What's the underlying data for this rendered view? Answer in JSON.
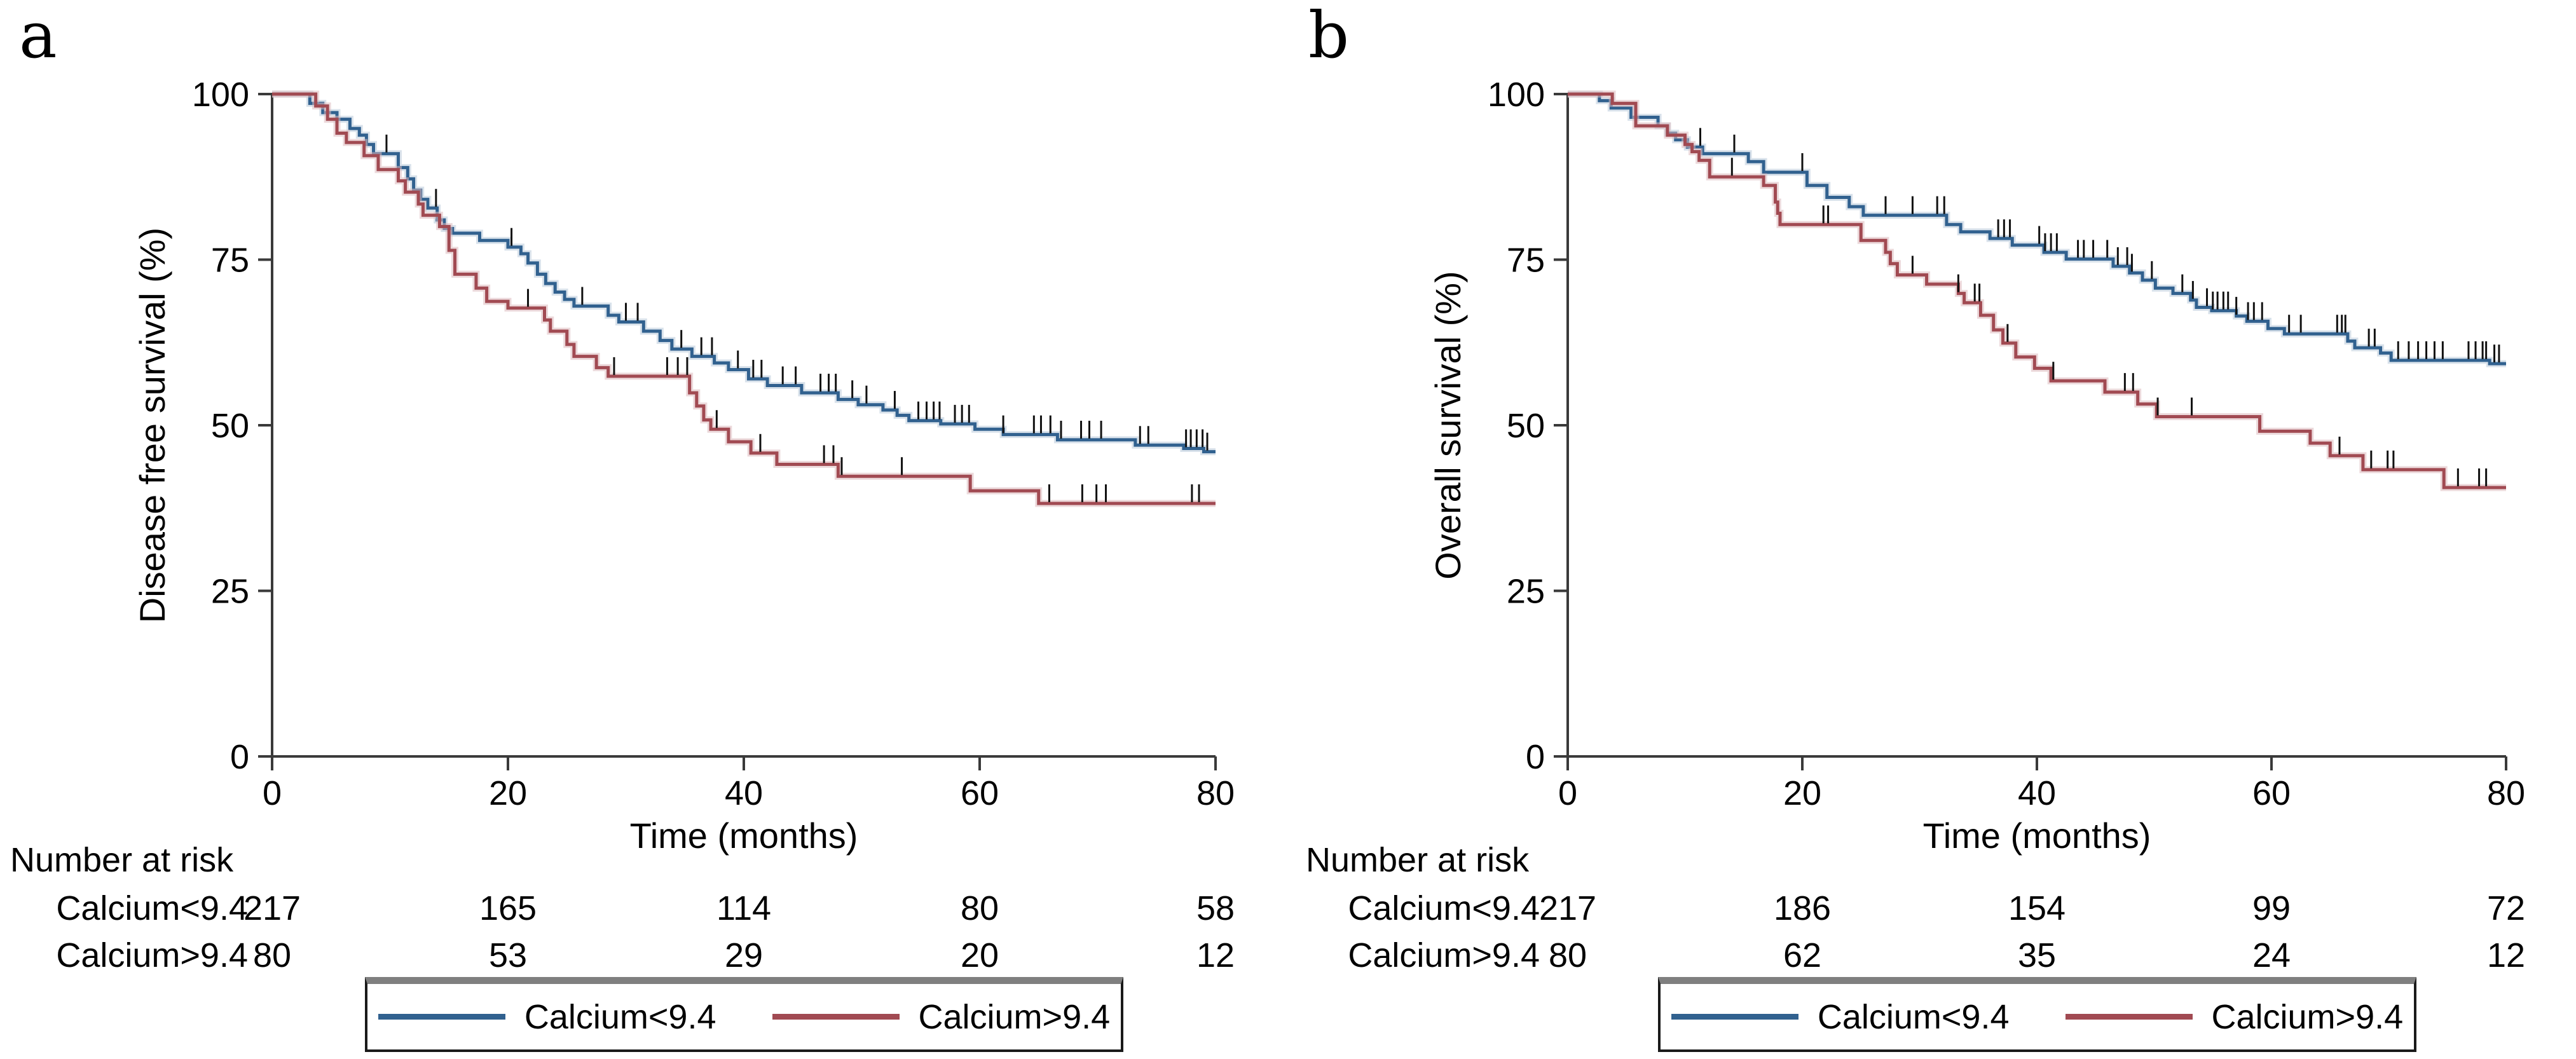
{
  "figure": {
    "panel_letters": [
      "a",
      "b"
    ],
    "accent_colors": {
      "group_low": "#31618f",
      "group_high": "#a14a52"
    },
    "axis_color": "#3a3a3a"
  },
  "chart_data": [
    {
      "panel_label": "a",
      "type": "line",
      "subtype": "kaplan-meier-step",
      "xlabel": "Time (months)",
      "ylabel": "Disease free survival (%)",
      "xlim": [
        0,
        80
      ],
      "ylim": [
        0,
        100
      ],
      "xticks": [
        0,
        20,
        40,
        60,
        80
      ],
      "yticks": [
        0,
        25,
        50,
        75,
        100
      ],
      "grid": false,
      "legend_position": "bottom-center-boxed",
      "series": [
        {
          "name": "Calcium<9.4",
          "color": "#31618f",
          "halo": "#b9cbdb",
          "steps": [
            [
              0,
              100
            ],
            [
              3.2,
              98.6
            ],
            [
              4.3,
              97.2
            ],
            [
              5.5,
              96.2
            ],
            [
              6.6,
              94.8
            ],
            [
              7.4,
              93.8
            ],
            [
              8.0,
              92.4
            ],
            [
              8.6,
              91.0
            ],
            [
              10.7,
              88.9
            ],
            [
              11.5,
              87.2
            ],
            [
              12.0,
              85.5
            ],
            [
              12.6,
              84.1
            ],
            [
              13.2,
              82.8
            ],
            [
              14.0,
              81.0
            ],
            [
              14.6,
              79.7
            ],
            [
              15.3,
              79.0
            ],
            [
              17.6,
              77.9
            ],
            [
              20.0,
              76.9
            ],
            [
              21.1,
              75.9
            ],
            [
              21.7,
              74.5
            ],
            [
              22.5,
              72.8
            ],
            [
              23.2,
              71.4
            ],
            [
              24.0,
              70.1
            ],
            [
              24.8,
              69.0
            ],
            [
              25.6,
              68.0
            ],
            [
              28.5,
              66.6
            ],
            [
              29.4,
              65.6
            ],
            [
              31.5,
              64.2
            ],
            [
              32.9,
              62.8
            ],
            [
              33.9,
              61.5
            ],
            [
              35.6,
              60.4
            ],
            [
              37.5,
              59.4
            ],
            [
              38.7,
              58.4
            ],
            [
              40.4,
              57.0
            ],
            [
              42.0,
              56.0
            ],
            [
              44.9,
              54.9
            ],
            [
              48.0,
              53.9
            ],
            [
              49.7,
              53.1
            ],
            [
              51.8,
              52.3
            ],
            [
              53.0,
              51.5
            ],
            [
              54.0,
              50.7
            ],
            [
              56.7,
              50.2
            ],
            [
              59.6,
              49.4
            ],
            [
              62.0,
              48.6
            ],
            [
              66.6,
              47.8
            ],
            [
              73.2,
              47.0
            ],
            [
              77.3,
              46.5
            ],
            [
              79.0,
              46.0
            ]
          ],
          "censor_times": [
            9.7,
            13.9,
            20.3,
            26.3,
            30.0,
            31.0,
            34.7,
            36.4,
            37.3,
            39.5,
            40.8,
            41.5,
            43.3,
            44.4,
            46.5,
            47.2,
            47.8,
            49.2,
            50.4,
            52.8,
            54.8,
            55.5,
            56.1,
            56.6,
            57.9,
            58.5,
            59.1,
            62.0,
            64.6,
            65.2,
            66.0,
            66.9,
            68.6,
            69.3,
            70.3,
            73.6,
            74.3,
            77.5,
            77.9,
            78.4,
            78.9,
            79.3
          ]
        },
        {
          "name": "Calcium>9.4",
          "color": "#a14a52",
          "halo": "#ddb9bd",
          "steps": [
            [
              0,
              100
            ],
            [
              3.7,
              98.2
            ],
            [
              4.7,
              96.2
            ],
            [
              5.5,
              94.1
            ],
            [
              6.3,
              92.7
            ],
            [
              7.8,
              90.7
            ],
            [
              9.0,
              88.6
            ],
            [
              10.7,
              86.9
            ],
            [
              11.3,
              85.2
            ],
            [
              12.4,
              83.4
            ],
            [
              12.8,
              81.7
            ],
            [
              14.2,
              80.0
            ],
            [
              15.0,
              76.4
            ],
            [
              15.5,
              72.8
            ],
            [
              17.3,
              70.7
            ],
            [
              18.2,
              68.7
            ],
            [
              20.0,
              67.7
            ],
            [
              23.1,
              65.9
            ],
            [
              23.6,
              64.2
            ],
            [
              25.0,
              62.2
            ],
            [
              25.6,
              60.4
            ],
            [
              27.5,
              58.7
            ],
            [
              28.5,
              57.4
            ],
            [
              35.4,
              54.9
            ],
            [
              36.0,
              52.9
            ],
            [
              36.6,
              50.8
            ],
            [
              37.2,
              49.4
            ],
            [
              38.7,
              47.5
            ],
            [
              40.6,
              45.8
            ],
            [
              42.8,
              44.1
            ],
            [
              48.0,
              42.3
            ],
            [
              59.2,
              40.1
            ],
            [
              65.0,
              38.2
            ]
          ],
          "censor_times": [
            21.7,
            29.0,
            33.5,
            34.4,
            35.2,
            37.7,
            41.4,
            46.8,
            47.6,
            48.3,
            53.4,
            65.9,
            68.7,
            69.9,
            70.7,
            78.0,
            78.6
          ]
        }
      ],
      "risk_table": {
        "title": "Number at risk",
        "rows": [
          {
            "label": "Calcium<9.4",
            "counts": [
              "217",
              "165",
              "114",
              "80",
              "58"
            ]
          },
          {
            "label": "Calcium>9.4",
            "counts": [
              "80",
              "53",
              "29",
              "20",
              "12"
            ]
          }
        ]
      }
    },
    {
      "panel_label": "b",
      "type": "line",
      "subtype": "kaplan-meier-step",
      "xlabel": "Time (months)",
      "ylabel": "Overall survival (%)",
      "xlim": [
        0,
        80
      ],
      "ylim": [
        0,
        100
      ],
      "xticks": [
        0,
        20,
        40,
        60,
        80
      ],
      "yticks": [
        0,
        25,
        50,
        75,
        100
      ],
      "grid": false,
      "legend_position": "bottom-center-boxed",
      "series": [
        {
          "name": "Calcium<9.4",
          "color": "#31618f",
          "halo": "#b9cbdb",
          "steps": [
            [
              0,
              100
            ],
            [
              2.7,
              99.0
            ],
            [
              3.7,
              97.9
            ],
            [
              5.4,
              96.5
            ],
            [
              7.7,
              95.2
            ],
            [
              8.5,
              94.1
            ],
            [
              9.2,
              93.1
            ],
            [
              10.2,
              92.0
            ],
            [
              11.5,
              91.0
            ],
            [
              15.4,
              89.8
            ],
            [
              16.7,
              88.2
            ],
            [
              20.4,
              86.2
            ],
            [
              22.1,
              84.4
            ],
            [
              24.0,
              83.0
            ],
            [
              25.2,
              81.7
            ],
            [
              32.3,
              80.3
            ],
            [
              33.5,
              79.2
            ],
            [
              36.0,
              78.2
            ],
            [
              37.9,
              77.2
            ],
            [
              40.6,
              76.1
            ],
            [
              42.5,
              75.1
            ],
            [
              46.5,
              74.0
            ],
            [
              47.9,
              73.0
            ],
            [
              49.0,
              71.9
            ],
            [
              50.1,
              70.7
            ],
            [
              51.6,
              69.9
            ],
            [
              53.1,
              68.9
            ],
            [
              53.6,
              67.8
            ],
            [
              54.9,
              67.3
            ],
            [
              57.0,
              66.5
            ],
            [
              57.9,
              65.7
            ],
            [
              59.7,
              64.6
            ],
            [
              61.1,
              63.8
            ],
            [
              66.5,
              62.7
            ],
            [
              67.1,
              61.7
            ],
            [
              69.3,
              60.9
            ],
            [
              70.2,
              59.8
            ],
            [
              78.6,
              59.3
            ]
          ],
          "censor_times": [
            11.3,
            14.2,
            20.0,
            27.1,
            29.4,
            31.5,
            32.1,
            36.7,
            37.2,
            37.7,
            40.2,
            40.7,
            41.2,
            41.7,
            43.5,
            44.0,
            44.8,
            46.0,
            46.9,
            47.7,
            48.1,
            49.8,
            52.4,
            53.3,
            54.5,
            55.0,
            55.4,
            55.9,
            56.3,
            57.0,
            58.0,
            58.5,
            59.2,
            61.5,
            62.5,
            65.6,
            66.0,
            66.3,
            68.3,
            68.8,
            70.8,
            71.7,
            72.5,
            73.2,
            73.9,
            74.6,
            76.8,
            77.4,
            78.0,
            78.3,
            79.0,
            79.4
          ]
        },
        {
          "name": "Calcium>9.4",
          "color": "#a14a52",
          "halo": "#ddb9bd",
          "steps": [
            [
              0,
              100
            ],
            [
              3.8,
              98.6
            ],
            [
              5.8,
              95.2
            ],
            [
              8.5,
              93.8
            ],
            [
              10.0,
              92.4
            ],
            [
              10.6,
              91.3
            ],
            [
              11.2,
              90.0
            ],
            [
              12.1,
              87.5
            ],
            [
              16.7,
              86.2
            ],
            [
              17.7,
              83.7
            ],
            [
              17.9,
              82.0
            ],
            [
              18.1,
              80.3
            ],
            [
              25.0,
              77.9
            ],
            [
              27.1,
              76.1
            ],
            [
              27.5,
              74.4
            ],
            [
              28.1,
              72.7
            ],
            [
              30.6,
              71.3
            ],
            [
              33.3,
              69.9
            ],
            [
              33.8,
              68.5
            ],
            [
              35.2,
              66.6
            ],
            [
              36.3,
              64.4
            ],
            [
              37.1,
              62.4
            ],
            [
              38.2,
              60.3
            ],
            [
              39.8,
              58.6
            ],
            [
              41.2,
              56.7
            ],
            [
              45.8,
              55.0
            ],
            [
              48.6,
              53.2
            ],
            [
              50.2,
              51.3
            ],
            [
              59.0,
              49.1
            ],
            [
              63.3,
              47.3
            ],
            [
              65.0,
              45.4
            ],
            [
              67.8,
              43.3
            ],
            [
              74.7,
              40.6
            ]
          ],
          "censor_times": [
            14.0,
            21.8,
            22.2,
            29.4,
            33.3,
            34.7,
            35.1,
            37.5,
            41.4,
            47.5,
            48.2,
            50.3,
            53.2,
            65.8,
            68.5,
            69.9,
            70.4,
            75.9,
            77.7,
            78.3
          ]
        }
      ],
      "risk_table": {
        "title": "Number at risk",
        "rows": [
          {
            "label": "Calcium<9.4",
            "counts": [
              "217",
              "186",
              "154",
              "99",
              "72"
            ]
          },
          {
            "label": "Calcium>9.4",
            "counts": [
              "80",
              "62",
              "35",
              "24",
              "12"
            ]
          }
        ]
      }
    }
  ]
}
